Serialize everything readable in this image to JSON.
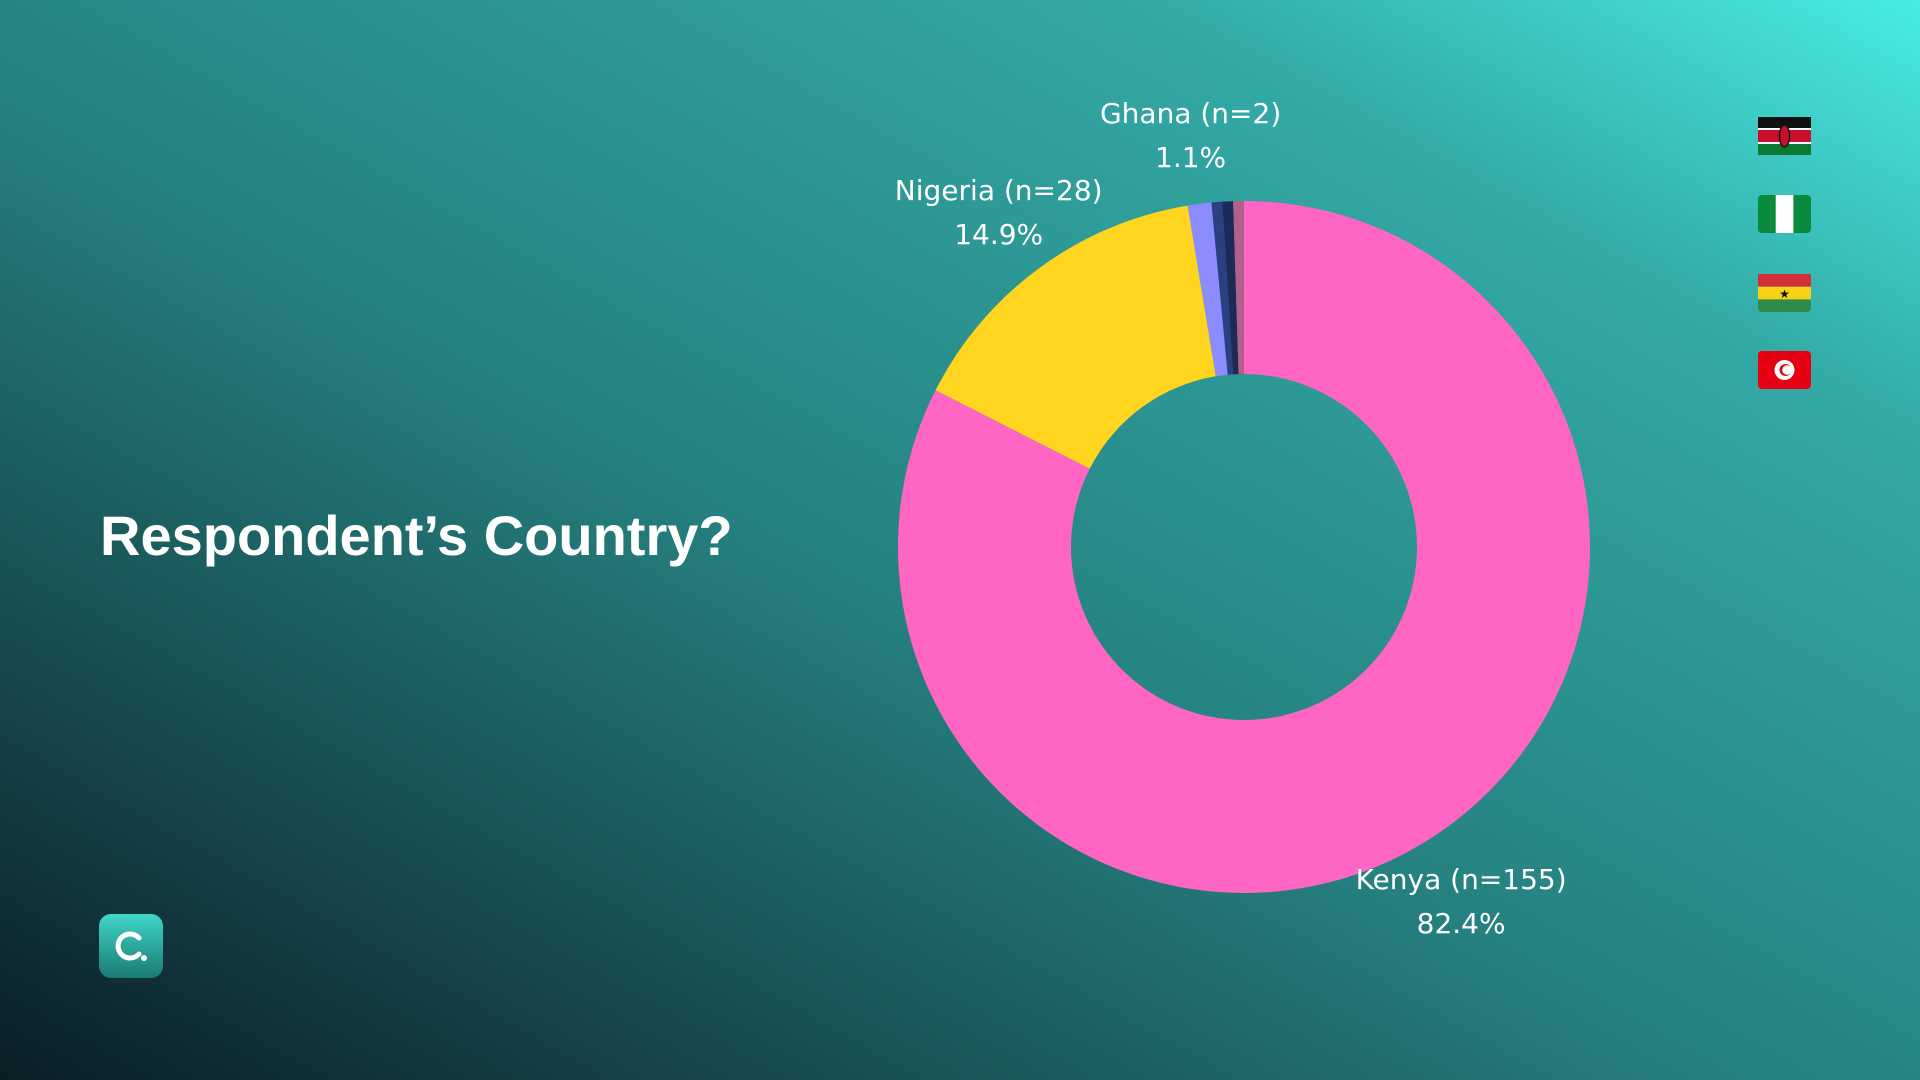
{
  "chart_data": {
    "type": "donut",
    "title": "Respondent’s Country?",
    "categories": [
      "Kenya (n=155)",
      "Nigeria (n=28)",
      "Ghana (n=2)",
      null,
      null,
      null
    ],
    "values": [
      82.4,
      14.9,
      1.1,
      0.5,
      0.5,
      0.5
    ],
    "value_labels": [
      "82.4%",
      "14.9%",
      "1.1%",
      null,
      null,
      null
    ],
    "colors": [
      "#ff66c4",
      "#ffd520",
      "#8c8cff",
      "#2c3f82",
      "#1d2957",
      "#b0608a"
    ]
  }
}
